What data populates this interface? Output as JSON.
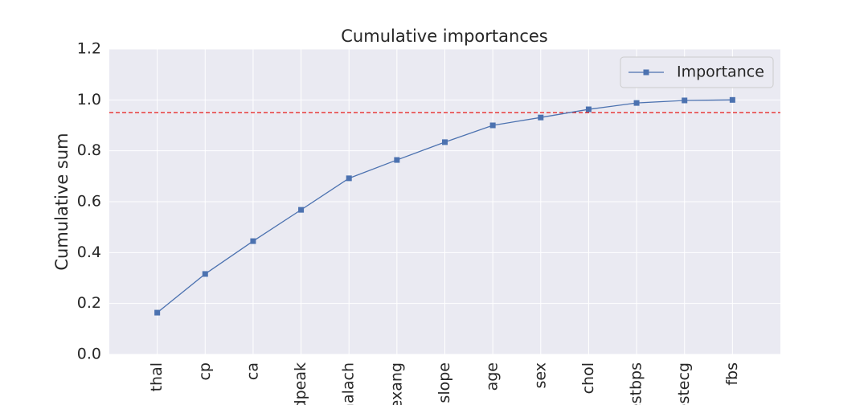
{
  "chart_data": {
    "type": "line",
    "title": "Cumulative importances",
    "ylabel": "Cumulative sum",
    "categories": [
      "thal",
      "cp",
      "ca",
      "oldpeak",
      "thalach",
      "exang",
      "slope",
      "age",
      "sex",
      "chol",
      "trestbps",
      "restecg",
      "fbs"
    ],
    "series": [
      {
        "name": "Importance",
        "color": "#4c72b0",
        "values": [
          0.164,
          0.316,
          0.445,
          0.568,
          0.692,
          0.764,
          0.834,
          0.9,
          0.931,
          0.963,
          0.988,
          0.998,
          1.0
        ]
      }
    ],
    "ylim": [
      0,
      1.2
    ],
    "yticks": [
      {
        "value": 0,
        "label": "0.0"
      },
      0.2,
      0.4,
      0.6,
      0.8,
      {
        "value": 1,
        "label": "1.0"
      },
      1.2
    ],
    "hline": {
      "value": 0.95,
      "color": "#e82a2a"
    },
    "grid": true,
    "legend": "upper right"
  }
}
